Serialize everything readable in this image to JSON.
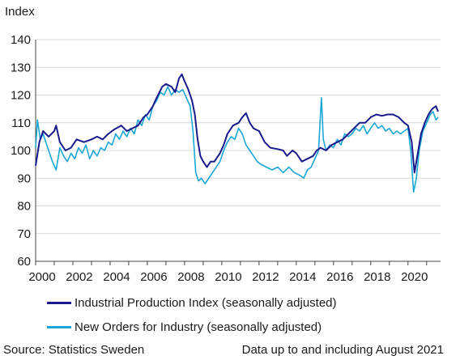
{
  "chart_data": {
    "type": "line",
    "ylabel": "Index",
    "ylim": [
      60,
      140
    ],
    "yticks": [
      60,
      70,
      80,
      90,
      100,
      110,
      120,
      130,
      140
    ],
    "xlim": [
      2000,
      2021.75
    ],
    "xticks": [
      "2000",
      "2002",
      "2004",
      "2006",
      "2008",
      "2010",
      "2012",
      "2014",
      "2016",
      "2018",
      "2020"
    ],
    "grid": "horizontal",
    "series": [
      {
        "name": "Industrial Production Index (seasonally adjusted)",
        "color": "#1a1a8c",
        "points": [
          [
            2000.0,
            94.5
          ],
          [
            2000.2,
            103
          ],
          [
            2000.4,
            107
          ],
          [
            2000.7,
            105
          ],
          [
            2001.0,
            107
          ],
          [
            2001.1,
            109
          ],
          [
            2001.3,
            103
          ],
          [
            2001.6,
            100
          ],
          [
            2001.9,
            101
          ],
          [
            2002.2,
            104
          ],
          [
            2002.6,
            103
          ],
          [
            2003.0,
            104
          ],
          [
            2003.3,
            105
          ],
          [
            2003.6,
            104
          ],
          [
            2003.9,
            106
          ],
          [
            2004.2,
            107.5
          ],
          [
            2004.6,
            109
          ],
          [
            2004.9,
            107
          ],
          [
            2005.2,
            108
          ],
          [
            2005.5,
            109
          ],
          [
            2005.8,
            112
          ],
          [
            2006.0,
            113
          ],
          [
            2006.3,
            116
          ],
          [
            2006.5,
            119
          ],
          [
            2006.8,
            123
          ],
          [
            2007.0,
            124
          ],
          [
            2007.3,
            123
          ],
          [
            2007.5,
            121
          ],
          [
            2007.7,
            126
          ],
          [
            2007.85,
            127.5
          ],
          [
            2008.0,
            125
          ],
          [
            2008.2,
            122
          ],
          [
            2008.4,
            118
          ],
          [
            2008.55,
            113
          ],
          [
            2008.7,
            104
          ],
          [
            2008.85,
            98
          ],
          [
            2009.0,
            96
          ],
          [
            2009.2,
            94
          ],
          [
            2009.4,
            96
          ],
          [
            2009.6,
            96
          ],
          [
            2009.9,
            99
          ],
          [
            2010.1,
            102
          ],
          [
            2010.3,
            106
          ],
          [
            2010.6,
            109
          ],
          [
            2010.9,
            110
          ],
          [
            2011.1,
            112
          ],
          [
            2011.3,
            113.5
          ],
          [
            2011.5,
            110
          ],
          [
            2011.7,
            108
          ],
          [
            2012.0,
            107
          ],
          [
            2012.3,
            103
          ],
          [
            2012.6,
            101
          ],
          [
            2013.0,
            100.5
          ],
          [
            2013.3,
            100
          ],
          [
            2013.5,
            98
          ],
          [
            2013.8,
            100
          ],
          [
            2014.0,
            99
          ],
          [
            2014.3,
            96
          ],
          [
            2014.6,
            97
          ],
          [
            2014.9,
            98
          ],
          [
            2015.1,
            100
          ],
          [
            2015.3,
            101
          ],
          [
            2015.6,
            100
          ],
          [
            2015.9,
            102
          ],
          [
            2016.2,
            103
          ],
          [
            2016.5,
            104
          ],
          [
            2016.8,
            106
          ],
          [
            2017.1,
            108
          ],
          [
            2017.4,
            110
          ],
          [
            2017.7,
            110
          ],
          [
            2018.0,
            112
          ],
          [
            2018.3,
            113
          ],
          [
            2018.6,
            112.5
          ],
          [
            2018.9,
            113
          ],
          [
            2019.2,
            113
          ],
          [
            2019.5,
            112
          ],
          [
            2019.8,
            110
          ],
          [
            2020.0,
            109
          ],
          [
            2020.2,
            103
          ],
          [
            2020.35,
            92
          ],
          [
            2020.5,
            98
          ],
          [
            2020.7,
            106
          ],
          [
            2020.9,
            110
          ],
          [
            2021.1,
            113
          ],
          [
            2021.3,
            115
          ],
          [
            2021.5,
            116
          ],
          [
            2021.62,
            114
          ]
        ]
      },
      {
        "name": "New Orders for Industry (seasonally adjusted)",
        "color": "#1aa7d6",
        "points": [
          [
            2000.0,
            101
          ],
          [
            2000.1,
            111
          ],
          [
            2000.25,
            104
          ],
          [
            2000.4,
            106
          ],
          [
            2000.55,
            103
          ],
          [
            2000.75,
            99
          ],
          [
            2000.9,
            96
          ],
          [
            2001.1,
            93
          ],
          [
            2001.3,
            101
          ],
          [
            2001.5,
            98
          ],
          [
            2001.7,
            96
          ],
          [
            2001.9,
            99
          ],
          [
            2002.1,
            97
          ],
          [
            2002.3,
            101
          ],
          [
            2002.5,
            99
          ],
          [
            2002.7,
            102
          ],
          [
            2002.9,
            97
          ],
          [
            2003.1,
            100
          ],
          [
            2003.3,
            98
          ],
          [
            2003.5,
            101
          ],
          [
            2003.7,
            100
          ],
          [
            2003.9,
            103
          ],
          [
            2004.1,
            102
          ],
          [
            2004.3,
            106
          ],
          [
            2004.5,
            104
          ],
          [
            2004.7,
            107
          ],
          [
            2004.9,
            105
          ],
          [
            2005.1,
            108
          ],
          [
            2005.3,
            106
          ],
          [
            2005.5,
            111
          ],
          [
            2005.7,
            109
          ],
          [
            2005.9,
            113
          ],
          [
            2006.1,
            111
          ],
          [
            2006.3,
            116
          ],
          [
            2006.5,
            118
          ],
          [
            2006.7,
            121
          ],
          [
            2006.9,
            120
          ],
          [
            2007.1,
            123
          ],
          [
            2007.3,
            120
          ],
          [
            2007.5,
            122
          ],
          [
            2007.7,
            121
          ],
          [
            2007.9,
            122
          ],
          [
            2008.1,
            119
          ],
          [
            2008.3,
            116
          ],
          [
            2008.45,
            107
          ],
          [
            2008.6,
            92
          ],
          [
            2008.75,
            89
          ],
          [
            2008.9,
            90
          ],
          [
            2009.1,
            88
          ],
          [
            2009.3,
            90
          ],
          [
            2009.5,
            92
          ],
          [
            2009.7,
            94
          ],
          [
            2009.9,
            96
          ],
          [
            2010.1,
            100
          ],
          [
            2010.3,
            103
          ],
          [
            2010.5,
            105
          ],
          [
            2010.7,
            104
          ],
          [
            2010.9,
            108
          ],
          [
            2011.1,
            106
          ],
          [
            2011.3,
            102
          ],
          [
            2011.5,
            100
          ],
          [
            2011.7,
            98
          ],
          [
            2011.9,
            96
          ],
          [
            2012.1,
            95
          ],
          [
            2012.4,
            94
          ],
          [
            2012.7,
            93
          ],
          [
            2013.0,
            94
          ],
          [
            2013.3,
            92
          ],
          [
            2013.6,
            94
          ],
          [
            2013.9,
            92
          ],
          [
            2014.2,
            91
          ],
          [
            2014.4,
            90
          ],
          [
            2014.6,
            93
          ],
          [
            2014.8,
            94
          ],
          [
            2015.0,
            97
          ],
          [
            2015.2,
            100
          ],
          [
            2015.3,
            113
          ],
          [
            2015.35,
            119
          ],
          [
            2015.45,
            104
          ],
          [
            2015.6,
            100
          ],
          [
            2015.8,
            102
          ],
          [
            2016.0,
            101
          ],
          [
            2016.2,
            104
          ],
          [
            2016.4,
            102
          ],
          [
            2016.6,
            106
          ],
          [
            2016.8,
            105
          ],
          [
            2017.0,
            106
          ],
          [
            2017.2,
            108
          ],
          [
            2017.4,
            107
          ],
          [
            2017.6,
            109
          ],
          [
            2017.8,
            106
          ],
          [
            2018.0,
            108
          ],
          [
            2018.2,
            110
          ],
          [
            2018.4,
            108
          ],
          [
            2018.6,
            109
          ],
          [
            2018.8,
            107
          ],
          [
            2019.0,
            108
          ],
          [
            2019.2,
            106
          ],
          [
            2019.4,
            107
          ],
          [
            2019.6,
            106
          ],
          [
            2019.8,
            107
          ],
          [
            2020.0,
            108
          ],
          [
            2020.15,
            100
          ],
          [
            2020.3,
            85
          ],
          [
            2020.45,
            90
          ],
          [
            2020.6,
            100
          ],
          [
            2020.8,
            107
          ],
          [
            2021.0,
            110
          ],
          [
            2021.2,
            113
          ],
          [
            2021.35,
            114
          ],
          [
            2021.5,
            111
          ],
          [
            2021.62,
            112
          ]
        ]
      }
    ],
    "legend_position": "bottom"
  },
  "footer": {
    "source": "Source: Statistics Sweden",
    "note": "Data up to and including August 2021"
  },
  "colors": {
    "axis": "#444444",
    "grid": "#d9d9d9"
  }
}
